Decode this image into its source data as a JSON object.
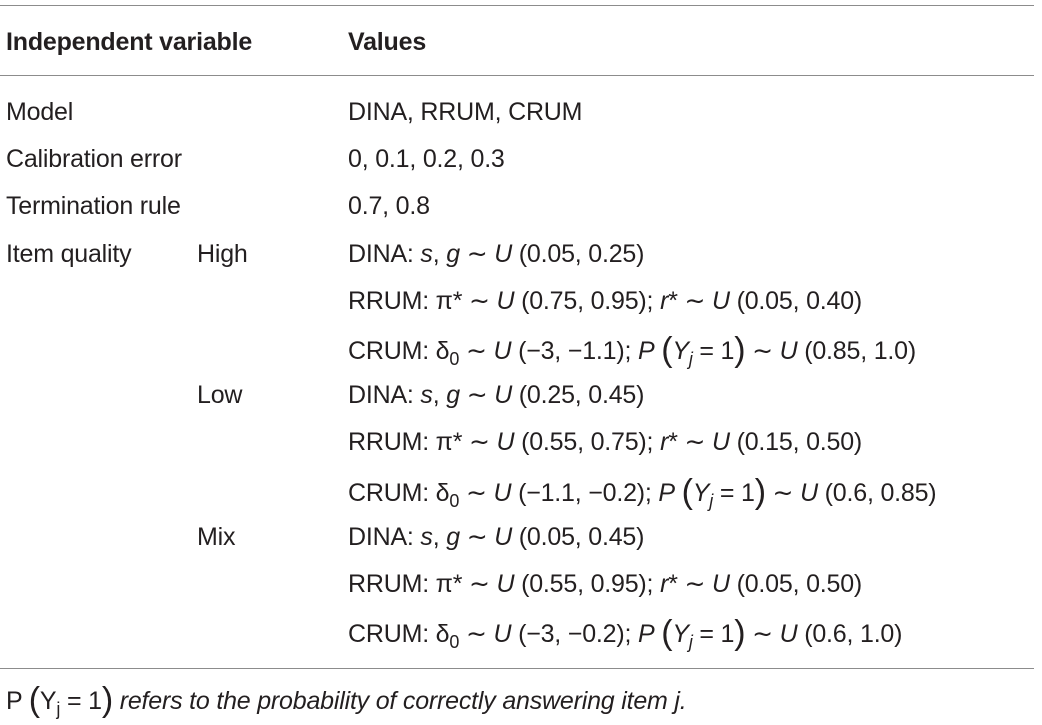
{
  "table": {
    "header": {
      "col1": "Independent variable",
      "col2": "Values"
    },
    "rows": [
      {
        "variable": "Model",
        "level": "",
        "value": "DINA, RRUM, CRUM"
      },
      {
        "variable": "Calibration error",
        "level": "",
        "value": "0, 0.1, 0.2, 0.3"
      },
      {
        "variable": "Termination rule",
        "level": "",
        "value": "0.7, 0.8"
      },
      {
        "variable": "Item quality",
        "level": "High",
        "value": "DINA: s, g ∼ U (0.05, 0.25)"
      },
      {
        "variable": "",
        "level": "",
        "value": "RRUM: π* ∼ U (0.75, 0.95); r* ∼ U (0.05, 0.40)"
      },
      {
        "variable": "",
        "level": "",
        "value": "CRUM: δ0 ∼ U (−3, −1.1); P (Yj = 1) ∼ U (0.85, 1.0)"
      },
      {
        "variable": "",
        "level": "Low",
        "value": "DINA: s, g ∼ U (0.25, 0.45)"
      },
      {
        "variable": "",
        "level": "",
        "value": "RRUM: π* ∼ U (0.55, 0.75); r* ∼ U (0.15, 0.50)"
      },
      {
        "variable": "",
        "level": "",
        "value": "CRUM: δ0 ∼ U (−1.1, −0.2); P (Yj = 1) ∼ U (0.6, 0.85)"
      },
      {
        "variable": "",
        "level": "Mix",
        "value": "DINA: s, g ∼ U (0.05, 0.45)"
      },
      {
        "variable": "",
        "level": "",
        "value": "RRUM: π* ∼ U (0.55, 0.95); r* ∼ U (0.05, 0.50)"
      },
      {
        "variable": "",
        "level": "",
        "value": "CRUM: δ0 ∼ U (−3, −0.2); P (Yj = 1) ∼ U (0.6, 1.0)"
      }
    ]
  },
  "footnote": {
    "formula": "P (Yj = 1)",
    "text": "refers to the probability of correctly answering item j."
  },
  "colors": {
    "text": "#231f20",
    "rule": "#8c8c8c"
  }
}
